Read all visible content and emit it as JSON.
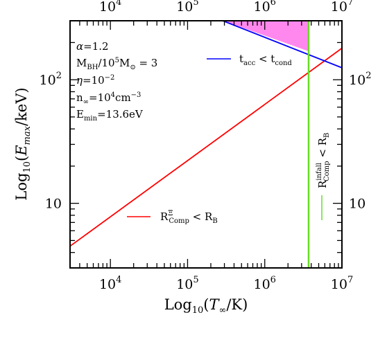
{
  "chart_data": {
    "type": "line",
    "x_scale": "log",
    "y_scale": "log",
    "xlim": [
      3000,
      10000000
    ],
    "ylim": [
      3,
      300
    ],
    "xlabel": "Log10(T∞/K)",
    "ylabel": "Log10(Emax/keV)",
    "x_ticks": [
      {
        "value": 10000,
        "base": "10",
        "exp": "4"
      },
      {
        "value": 100000,
        "base": "10",
        "exp": "5"
      },
      {
        "value": 1000000,
        "base": "10",
        "exp": "6"
      },
      {
        "value": 10000000,
        "base": "10",
        "exp": "7"
      }
    ],
    "y_ticks": [
      {
        "value": 10,
        "base": "10",
        "exp": ""
      },
      {
        "value": 100,
        "base": "10",
        "exp": "2"
      }
    ],
    "params": [
      {
        "key": "alpha",
        "text": "α=1.2"
      },
      {
        "key": "mbh",
        "text": "M_BH/10^5M_⊙ = 3"
      },
      {
        "key": "eta",
        "text": "η=10^-2"
      },
      {
        "key": "n",
        "text": "n_∞=10^4cm^-3"
      },
      {
        "key": "emin",
        "text": "E_min=13.6eV"
      }
    ],
    "series": [
      {
        "name": "R_Comp^Ξ < R_B",
        "color": "#ff0000",
        "x": [
          3000,
          10000000
        ],
        "y": [
          4.5,
          180
        ]
      },
      {
        "name": "t_acc < t_cond",
        "color": "#0000ff",
        "x": [
          250000,
          10000000
        ],
        "y": [
          310,
          125
        ]
      },
      {
        "name": "R_Comp^infall < R_B",
        "color": "#66dd22",
        "x": [
          3700000,
          3700000
        ],
        "y": [
          3,
          300
        ]
      }
    ],
    "shaded_region": {
      "color": "#ff88ee",
      "polygon": [
        [
          250000,
          310
        ],
        [
          3700000,
          300
        ],
        [
          3700000,
          170
        ]
      ]
    },
    "labels": {
      "red": {
        "base": "R",
        "sup": "Ξ",
        "sub": "Comp",
        "rel": "<",
        "rhs": "R",
        "rhs_sub": "B"
      },
      "blue": {
        "lhs": "t",
        "lhs_sub": "acc",
        "rel": "<",
        "rhs": "t",
        "rhs_sub": "cond"
      },
      "green": {
        "base": "R",
        "sup": "infall",
        "sub": "Comp",
        "rel": "<",
        "rhs": "R",
        "rhs_sub": "B"
      }
    }
  }
}
